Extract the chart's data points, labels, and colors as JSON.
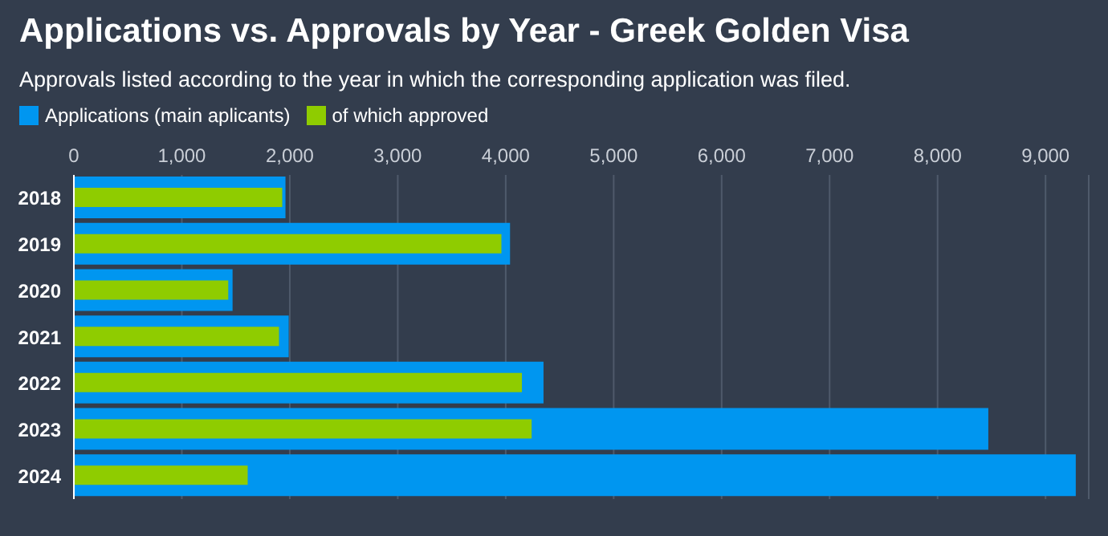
{
  "chart_data": {
    "type": "bar",
    "orientation": "horizontal",
    "title": "Applications vs. Approvals by Year - Greek Golden Visa",
    "subtitle": "Approvals listed according to the year in which the corresponding application was filed.",
    "categories": [
      "2018",
      "2019",
      "2020",
      "2021",
      "2022",
      "2023",
      "2024"
    ],
    "series": [
      {
        "name": "Applications (main aplicants)",
        "color": "#0096f0",
        "values": [
          1960,
          4040,
          1470,
          1990,
          4350,
          8470,
          9280
        ]
      },
      {
        "name": "of which approved",
        "color": "#8fcc00",
        "values": [
          1930,
          3960,
          1430,
          1900,
          4150,
          4240,
          1610
        ]
      }
    ],
    "xlim": [
      0,
      9400
    ],
    "xticks": [
      {
        "value": 0,
        "label": "0"
      },
      {
        "value": 1000,
        "label": "1,000"
      },
      {
        "value": 2000,
        "label": "2,000"
      },
      {
        "value": 3000,
        "label": "3,000"
      },
      {
        "value": 4000,
        "label": "4,000"
      },
      {
        "value": 5000,
        "label": "5,000"
      },
      {
        "value": 6000,
        "label": "6,000"
      },
      {
        "value": 7000,
        "label": "7,000"
      },
      {
        "value": 8000,
        "label": "8,000"
      },
      {
        "value": 9000,
        "label": "9,000"
      }
    ],
    "grid": "x",
    "legend": "top left"
  }
}
